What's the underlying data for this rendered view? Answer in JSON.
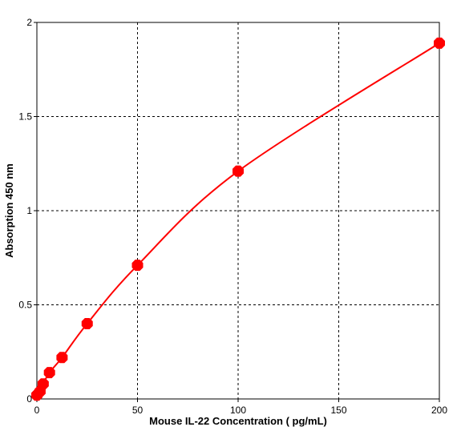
{
  "chart_data": {
    "type": "line",
    "title": "",
    "xlabel": "Mouse IL-22 Concentration ( pg/mL)",
    "ylabel": "Absorption 450 nm",
    "xlim": [
      0,
      200
    ],
    "ylim": [
      0,
      2
    ],
    "x_ticks": [
      0,
      50,
      100,
      150,
      200
    ],
    "x_tick_labels": [
      "0",
      "50",
      "100",
      "150",
      "200"
    ],
    "y_ticks": [
      0,
      0.5,
      1,
      1.5,
      2
    ],
    "y_tick_labels": [
      "0",
      "0.5",
      "1",
      "1.5",
      "2"
    ],
    "grid": true,
    "grid_style": "dashed",
    "legend": "none",
    "series": [
      {
        "x": [
          0,
          1.56,
          3.13,
          6.25,
          12.5,
          25,
          50,
          100,
          200
        ],
        "y": [
          0.02,
          0.04,
          0.08,
          0.14,
          0.22,
          0.4,
          0.71,
          1.21,
          1.89
        ],
        "color": "#ff0000",
        "marker": "octagon",
        "curve": "smooth"
      }
    ]
  }
}
